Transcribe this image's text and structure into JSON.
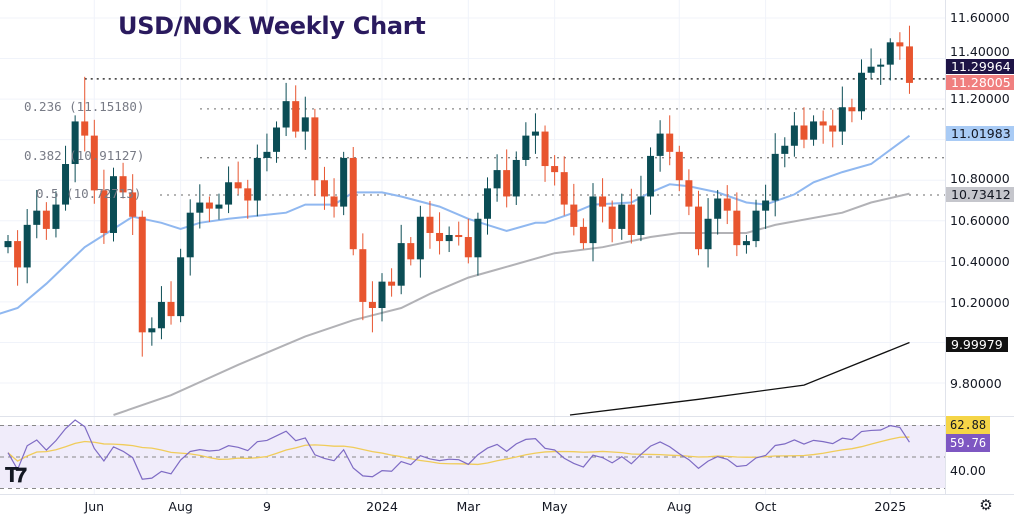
{
  "title": "USD/NOK Weekly Chart",
  "colors": {
    "up": "#0b4d55",
    "down": "#e8552f",
    "ma_fast": "#90b8f0",
    "ma_mid": "#b2b2b6",
    "ma_slow": "#111111",
    "rsi": "#7e6bc4",
    "rsi_ma": "#f0cc5a",
    "rsi_bg": "#f0ecfa"
  },
  "chart_data": {
    "type": "candlestick",
    "title": "USD/NOK Weekly Chart",
    "ylim": [
      9.64,
      11.65
    ],
    "y_ticks": [
      "11.60000",
      "11.40000",
      "11.20000",
      "10.80000",
      "10.60000",
      "10.40000",
      "10.20000",
      "9.80000"
    ],
    "x_ticks": [
      {
        "label": "Jun",
        "week": 9
      },
      {
        "label": "Aug",
        "week": 18
      },
      {
        "label": "9",
        "week": 27
      },
      {
        "label": "2024",
        "week": 39
      },
      {
        "label": "Mar",
        "week": 48
      },
      {
        "label": "May",
        "week": 57
      },
      {
        "label": "Aug",
        "week": 70
      },
      {
        "label": "Oct",
        "week": 79
      },
      {
        "label": "2025",
        "week": 92
      }
    ],
    "first_open": 10.47,
    "close": [
      10.5,
      10.37,
      10.58,
      10.65,
      10.56,
      10.68,
      10.88,
      11.09,
      11.02,
      10.75,
      10.54,
      10.82,
      10.74,
      10.62,
      10.05,
      10.07,
      10.2,
      10.13,
      10.42,
      10.64,
      10.69,
      10.66,
      10.68,
      10.79,
      10.76,
      10.7,
      10.91,
      10.94,
      11.06,
      11.19,
      11.04,
      11.11,
      10.8,
      10.72,
      10.67,
      10.91,
      10.46,
      10.2,
      10.17,
      10.3,
      10.28,
      10.49,
      10.41,
      10.62,
      10.54,
      10.5,
      10.53,
      10.52,
      10.42,
      10.61,
      10.76,
      10.85,
      10.72,
      10.9,
      11.02,
      11.04,
      10.87,
      10.84,
      10.68,
      10.57,
      10.49,
      10.72,
      10.67,
      10.56,
      10.68,
      10.53,
      10.72,
      10.92,
      11.03,
      10.94,
      10.8,
      10.67,
      10.46,
      10.61,
      10.71,
      10.65,
      10.48,
      10.5,
      10.65,
      10.7,
      10.93,
      10.97,
      11.07,
      11.0,
      11.09,
      11.07,
      11.04,
      11.16,
      11.14,
      11.33,
      11.36,
      11.37,
      11.48,
      11.46,
      11.28
    ],
    "notable_highs": [
      {
        "week": 8,
        "value": 11.31
      },
      {
        "week": 29,
        "value": 11.28
      },
      {
        "week": 92,
        "value": 11.5
      },
      {
        "week": 93,
        "value": 11.53
      }
    ],
    "notable_lows": [
      {
        "week": 14,
        "value": 9.93
      },
      {
        "week": 38,
        "value": 10.05
      }
    ],
    "ma_fast": [
      [
        -1,
        10.14
      ],
      [
        1,
        10.17
      ],
      [
        3,
        10.25
      ],
      [
        4,
        10.29
      ],
      [
        6,
        10.38
      ],
      [
        8,
        10.47
      ],
      [
        10,
        10.53
      ],
      [
        13,
        10.62
      ],
      [
        16,
        10.59
      ],
      [
        18,
        10.56
      ],
      [
        20,
        10.59
      ],
      [
        23,
        10.61
      ],
      [
        27,
        10.63
      ],
      [
        29,
        10.64
      ],
      [
        31,
        10.68
      ],
      [
        34,
        10.68
      ],
      [
        36,
        10.74
      ],
      [
        39,
        10.74
      ],
      [
        41,
        10.72
      ],
      [
        45,
        10.67
      ],
      [
        48,
        10.61
      ],
      [
        50,
        10.58
      ],
      [
        52,
        10.55
      ],
      [
        55,
        10.59
      ],
      [
        56,
        10.59
      ],
      [
        59,
        10.64
      ],
      [
        61,
        10.68
      ],
      [
        65,
        10.69
      ],
      [
        67,
        10.74
      ],
      [
        69,
        10.78
      ],
      [
        71,
        10.77
      ],
      [
        74,
        10.74
      ],
      [
        77,
        10.69
      ],
      [
        79,
        10.68
      ],
      [
        82,
        10.73
      ],
      [
        84,
        10.79
      ],
      [
        87,
        10.84
      ],
      [
        90,
        10.88
      ],
      [
        92,
        10.95
      ],
      [
        94,
        11.01983
      ]
    ],
    "ma_mid": [
      [
        11,
        9.64
      ],
      [
        17,
        9.74
      ],
      [
        24,
        9.89
      ],
      [
        31,
        10.03
      ],
      [
        36,
        10.11
      ],
      [
        41,
        10.17
      ],
      [
        44,
        10.24
      ],
      [
        48,
        10.32
      ],
      [
        51,
        10.36
      ],
      [
        57,
        10.44
      ],
      [
        62,
        10.47
      ],
      [
        67,
        10.52
      ],
      [
        70,
        10.54
      ],
      [
        77,
        10.54
      ],
      [
        80,
        10.58
      ],
      [
        87,
        10.64
      ],
      [
        90,
        10.69
      ],
      [
        94,
        10.73412
      ]
    ],
    "ma_slow": [
      [
        58.6,
        9.64
      ],
      [
        72,
        9.72
      ],
      [
        83,
        9.79
      ],
      [
        94,
        9.99979
      ]
    ],
    "levels": [
      {
        "label": "11.29964",
        "value": 11.29964
      },
      {
        "label": "0.236 (11.15180)",
        "value": 11.1518
      },
      {
        "label": "0.382 (10.91127)",
        "value": 10.91127
      },
      {
        "label": "0.5 (10.72713)",
        "value": 10.72713
      }
    ],
    "price_tags": {
      "high_line": "11.29964",
      "last": "11.28005",
      "ma_fast": "11.01983",
      "ma_mid": "10.73412",
      "ma_slow": "9.99979"
    },
    "rsi": {
      "ylim": [
        25,
        75
      ],
      "levels": [
        70,
        50,
        30
      ],
      "tick": "40.00",
      "rsi_ma_value": "62.88",
      "rsi_value": "59.76",
      "period": 14,
      "ma_period": 14
    }
  }
}
